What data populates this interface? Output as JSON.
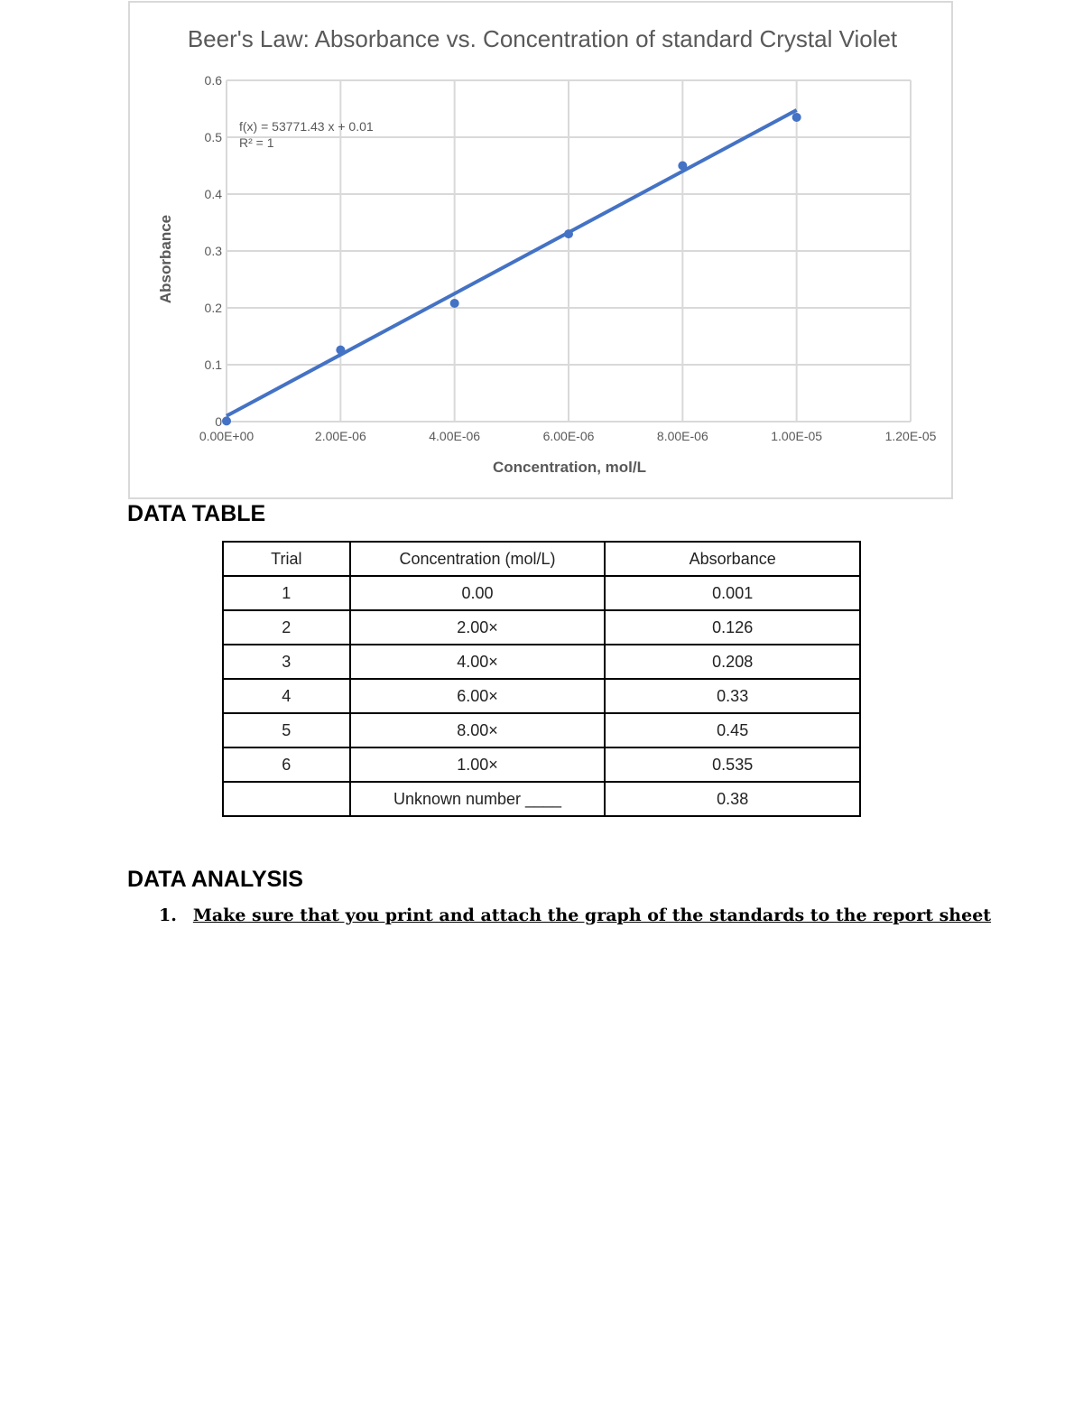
{
  "chart_data": {
    "type": "scatter",
    "title": "Beer's Law: Absorbance vs. Concentration of standard Crystal Violet",
    "xlabel": "Concentration, mol/L",
    "ylabel": "Absorbance",
    "xlim": [
      0,
      1.2e-05
    ],
    "ylim": [
      0,
      0.6
    ],
    "x_ticks": [
      "0.00E+00",
      "2.00E-06",
      "4.00E-06",
      "6.00E-06",
      "8.00E-06",
      "1.00E-05",
      "1.20E-05"
    ],
    "y_ticks": [
      "0",
      "0.1",
      "0.2",
      "0.3",
      "0.4",
      "0.5",
      "0.6"
    ],
    "x": [
      0,
      2e-06,
      4e-06,
      6e-06,
      8e-06,
      1e-05
    ],
    "y": [
      0.001,
      0.126,
      0.208,
      0.33,
      0.45,
      0.535
    ],
    "trendline": {
      "slope": 53771.43,
      "intercept": 0.01,
      "equation": "f(x) = 53771.43 x + 0.01",
      "r2": "R² = 1"
    },
    "grid": true,
    "color": "#4472c4"
  },
  "data_table": {
    "heading": "DATA TABLE",
    "headers": [
      "Trial",
      "Concentration (mol/L)",
      "Absorbance"
    ],
    "rows": [
      [
        "1",
        "0.00",
        "0.001"
      ],
      [
        "2",
        "2.00×",
        "0.126"
      ],
      [
        "3",
        "4.00×",
        "0.208"
      ],
      [
        "4",
        "6.00×",
        "0.33"
      ],
      [
        "5",
        "8.00×",
        "0.45"
      ],
      [
        "6",
        "1.00×",
        "0.535"
      ],
      [
        "",
        "Unknown number ____",
        "0.38"
      ]
    ]
  },
  "analysis": {
    "heading": "DATA ANALYSIS",
    "items": [
      {
        "num": "1.",
        "text": "Make sure that you print and attach the graph of the standards to the report sheet"
      }
    ]
  }
}
